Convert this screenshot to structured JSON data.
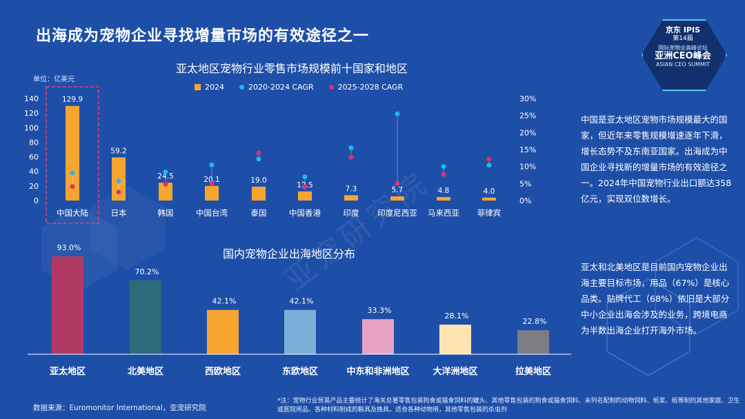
{
  "slide": {
    "title": "出海成为宠物企业寻找增量市场的有效途径之一",
    "watermark": "亚宠研究院"
  },
  "logo": {
    "line1": "京东 IPIS",
    "line2": "第14届",
    "line3": "国际宠物业高峰论坛",
    "line4": "亚洲CEO峰会",
    "line5": "ASIAN CEO SUMMIT"
  },
  "chart_data": [
    {
      "type": "bar",
      "title": "亚太地区宠物行业零售市场规模前十国家和地区",
      "unit": "单位：亿美元",
      "categories": [
        "中国大陆",
        "日本",
        "韩国",
        "中国台湾",
        "泰国",
        "中国香港",
        "印度",
        "印度尼西亚",
        "马来西亚",
        "菲律宾"
      ],
      "series": [
        {
          "name": "2024",
          "kind": "bar",
          "color": "#f7a531",
          "values": [
            129.9,
            59.2,
            24.5,
            20.1,
            19.0,
            12.5,
            7.3,
            5.7,
            4.8,
            4.0
          ]
        },
        {
          "name": "2020-2024 CAGR",
          "kind": "scatter",
          "axis": "right",
          "color": "#22b8e8",
          "values": [
            8.1,
            5.7,
            8.4,
            10.5,
            12.2,
            7.0,
            15.5,
            25.5,
            10.0,
            10.4
          ]
        },
        {
          "name": "2025-2028 CAGR",
          "kind": "scatter",
          "axis": "right",
          "color": "#d9346b",
          "values": [
            4.1,
            2.5,
            4.8,
            5.0,
            14.0,
            4.0,
            12.8,
            5.0,
            7.7,
            12.2
          ]
        }
      ],
      "y_ticks": [
        "140",
        "120",
        "100",
        "80",
        "60",
        "40",
        "20",
        "0"
      ],
      "ylim": [
        0,
        140
      ],
      "y2_ticks": [
        "30%",
        "25%",
        "20%",
        "15%",
        "10%",
        "5%",
        "0%"
      ],
      "y2lim": [
        0,
        30
      ],
      "highlight": "中国大陆"
    },
    {
      "type": "bar",
      "title": "国内宠物企业出海地区分布",
      "categories": [
        "亚太地区",
        "北美地区",
        "西欧地区",
        "东欧地区",
        "中东和非洲地区",
        "大洋洲地区",
        "拉美地区"
      ],
      "values": [
        93.0,
        70.2,
        42.1,
        42.1,
        33.3,
        28.1,
        22.8
      ],
      "labels": [
        "93.0%",
        "70.2%",
        "42.1%",
        "42.1%",
        "33.3%",
        "28.1%",
        "22.8%"
      ],
      "colors": [
        "#b13a64",
        "#2e6b7a",
        "#f7a531",
        "#7aaed8",
        "#e8a3c4",
        "#fde3b2",
        "#7b7d82"
      ],
      "ylim": [
        0,
        100
      ]
    }
  ],
  "side_text": {
    "para1": "中国是亚太地区宠物市场规模最大的国家，但近年来零售规模增速逐年下滑，增长态势不及东南亚国家。出海成为中国企业寻找新的增量市场的有效途径之一。2024年中国宠物行业出口额达358亿元，实现双位数增长。",
    "para2": "亚太和北美地区是目前国内宠物企业出海主要目标市场，用品（67%）是核心品类。贴牌代工（68%）依旧是大部分中小企业出海会涉及的业务，跨境电商为半数出海企业打开海外市场。"
  },
  "footer": {
    "source": "数据来源：Euromonitor International，亚宠研究院",
    "note": "*注：宠物行业贸易产品主要统计了海关总署零售包装狗食或猫食饲料的罐头、其他零售包装的狗食或猫食饲料、未列名配制的动物饲料、纸浆、纸等制的其他家庭、卫生或医院用品、各种材料制成的鞍具及挽具，适合各种动物用，其他零售包装的杀虫剂"
  }
}
